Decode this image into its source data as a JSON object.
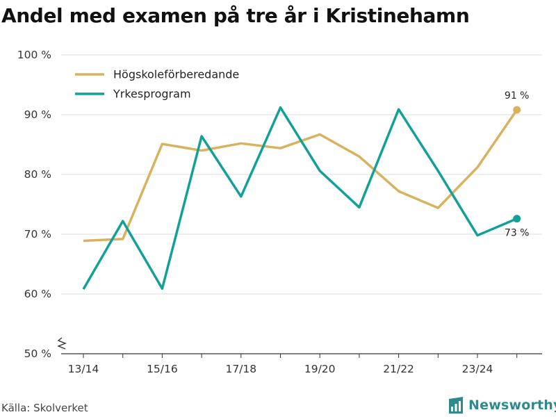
{
  "title": "Andel med examen på tre år i Kristinehamn",
  "source": "Källa: Skolverket",
  "brand": {
    "name": "Newsworthy",
    "icon": "bar-chart-logo-icon",
    "color": "#2f8a8d"
  },
  "chart_data": {
    "type": "line",
    "x_tick_labels": [
      "13/14",
      "15/16",
      "17/18",
      "19/20",
      "21/22",
      "23/24"
    ],
    "x": [
      "13/14",
      "14/15",
      "15/16",
      "16/17",
      "17/18",
      "18/19",
      "19/20",
      "20/21",
      "21/22",
      "22/23",
      "23/24",
      "24/25"
    ],
    "ylim": [
      50,
      100
    ],
    "y_ticks": [
      50,
      60,
      70,
      80,
      90,
      100
    ],
    "y_tick_labels": [
      "50 %",
      "60 %",
      "70 %",
      "80 %",
      "90 %",
      "100 %"
    ],
    "grid": "horizontal",
    "legend_position": "top-left",
    "series": [
      {
        "name": "Högskoleförberedande",
        "color": "#d9b25f",
        "values": [
          68.9,
          69.2,
          85.1,
          84.0,
          85.2,
          84.4,
          86.7,
          83.0,
          77.2,
          74.4,
          81.2,
          90.8
        ],
        "end_label": "91 %"
      },
      {
        "name": "Yrkesprogram",
        "color": "#13a096",
        "values": [
          60.8,
          72.2,
          60.9,
          86.4,
          76.3,
          91.2,
          80.6,
          74.5,
          90.9,
          80.6,
          69.8,
          72.6
        ],
        "end_label": "73 %"
      }
    ]
  }
}
